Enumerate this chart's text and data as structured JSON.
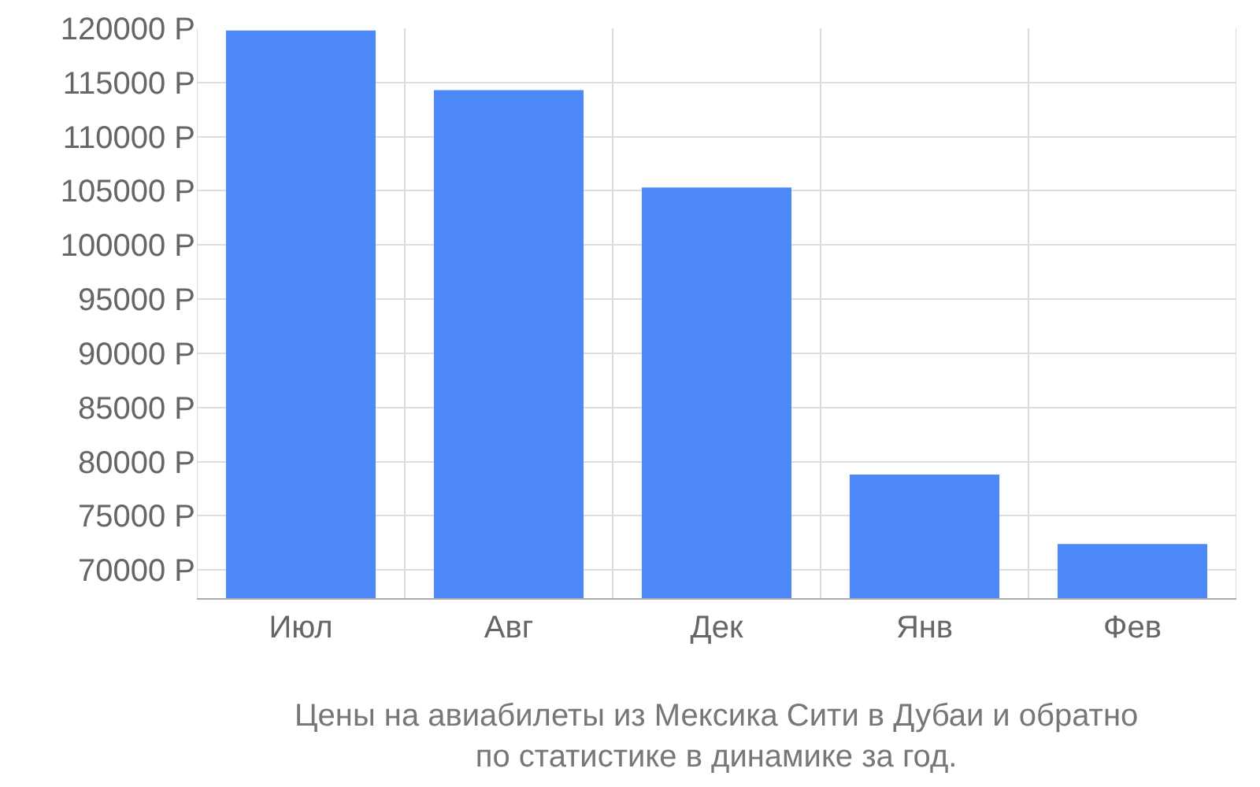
{
  "chart_data": {
    "type": "bar",
    "categories": [
      "Июл",
      "Авг",
      "Дек",
      "Янв",
      "Фев"
    ],
    "values": [
      119800,
      114300,
      105300,
      78800,
      72400
    ],
    "color": "#4d88f9",
    "ylim": [
      67400,
      120000
    ],
    "yticks": [
      {
        "value": 70000,
        "label": "70000 Р"
      },
      {
        "value": 75000,
        "label": "75000 Р"
      },
      {
        "value": 80000,
        "label": "80000 Р"
      },
      {
        "value": 85000,
        "label": "85000 Р"
      },
      {
        "value": 90000,
        "label": "90000 Р"
      },
      {
        "value": 95000,
        "label": "95000 Р"
      },
      {
        "value": 100000,
        "label": "100000 Р"
      },
      {
        "value": 105000,
        "label": "105000 Р"
      },
      {
        "value": 110000,
        "label": "110000 Р"
      },
      {
        "value": 115000,
        "label": "115000 Р"
      },
      {
        "value": 120000,
        "label": "120000 Р"
      }
    ],
    "grid": true,
    "annotations": [
      "Цены на авиабилеты из Мексика Сити в Дубаи и обратно\nпо статистике в динамике за год."
    ]
  }
}
